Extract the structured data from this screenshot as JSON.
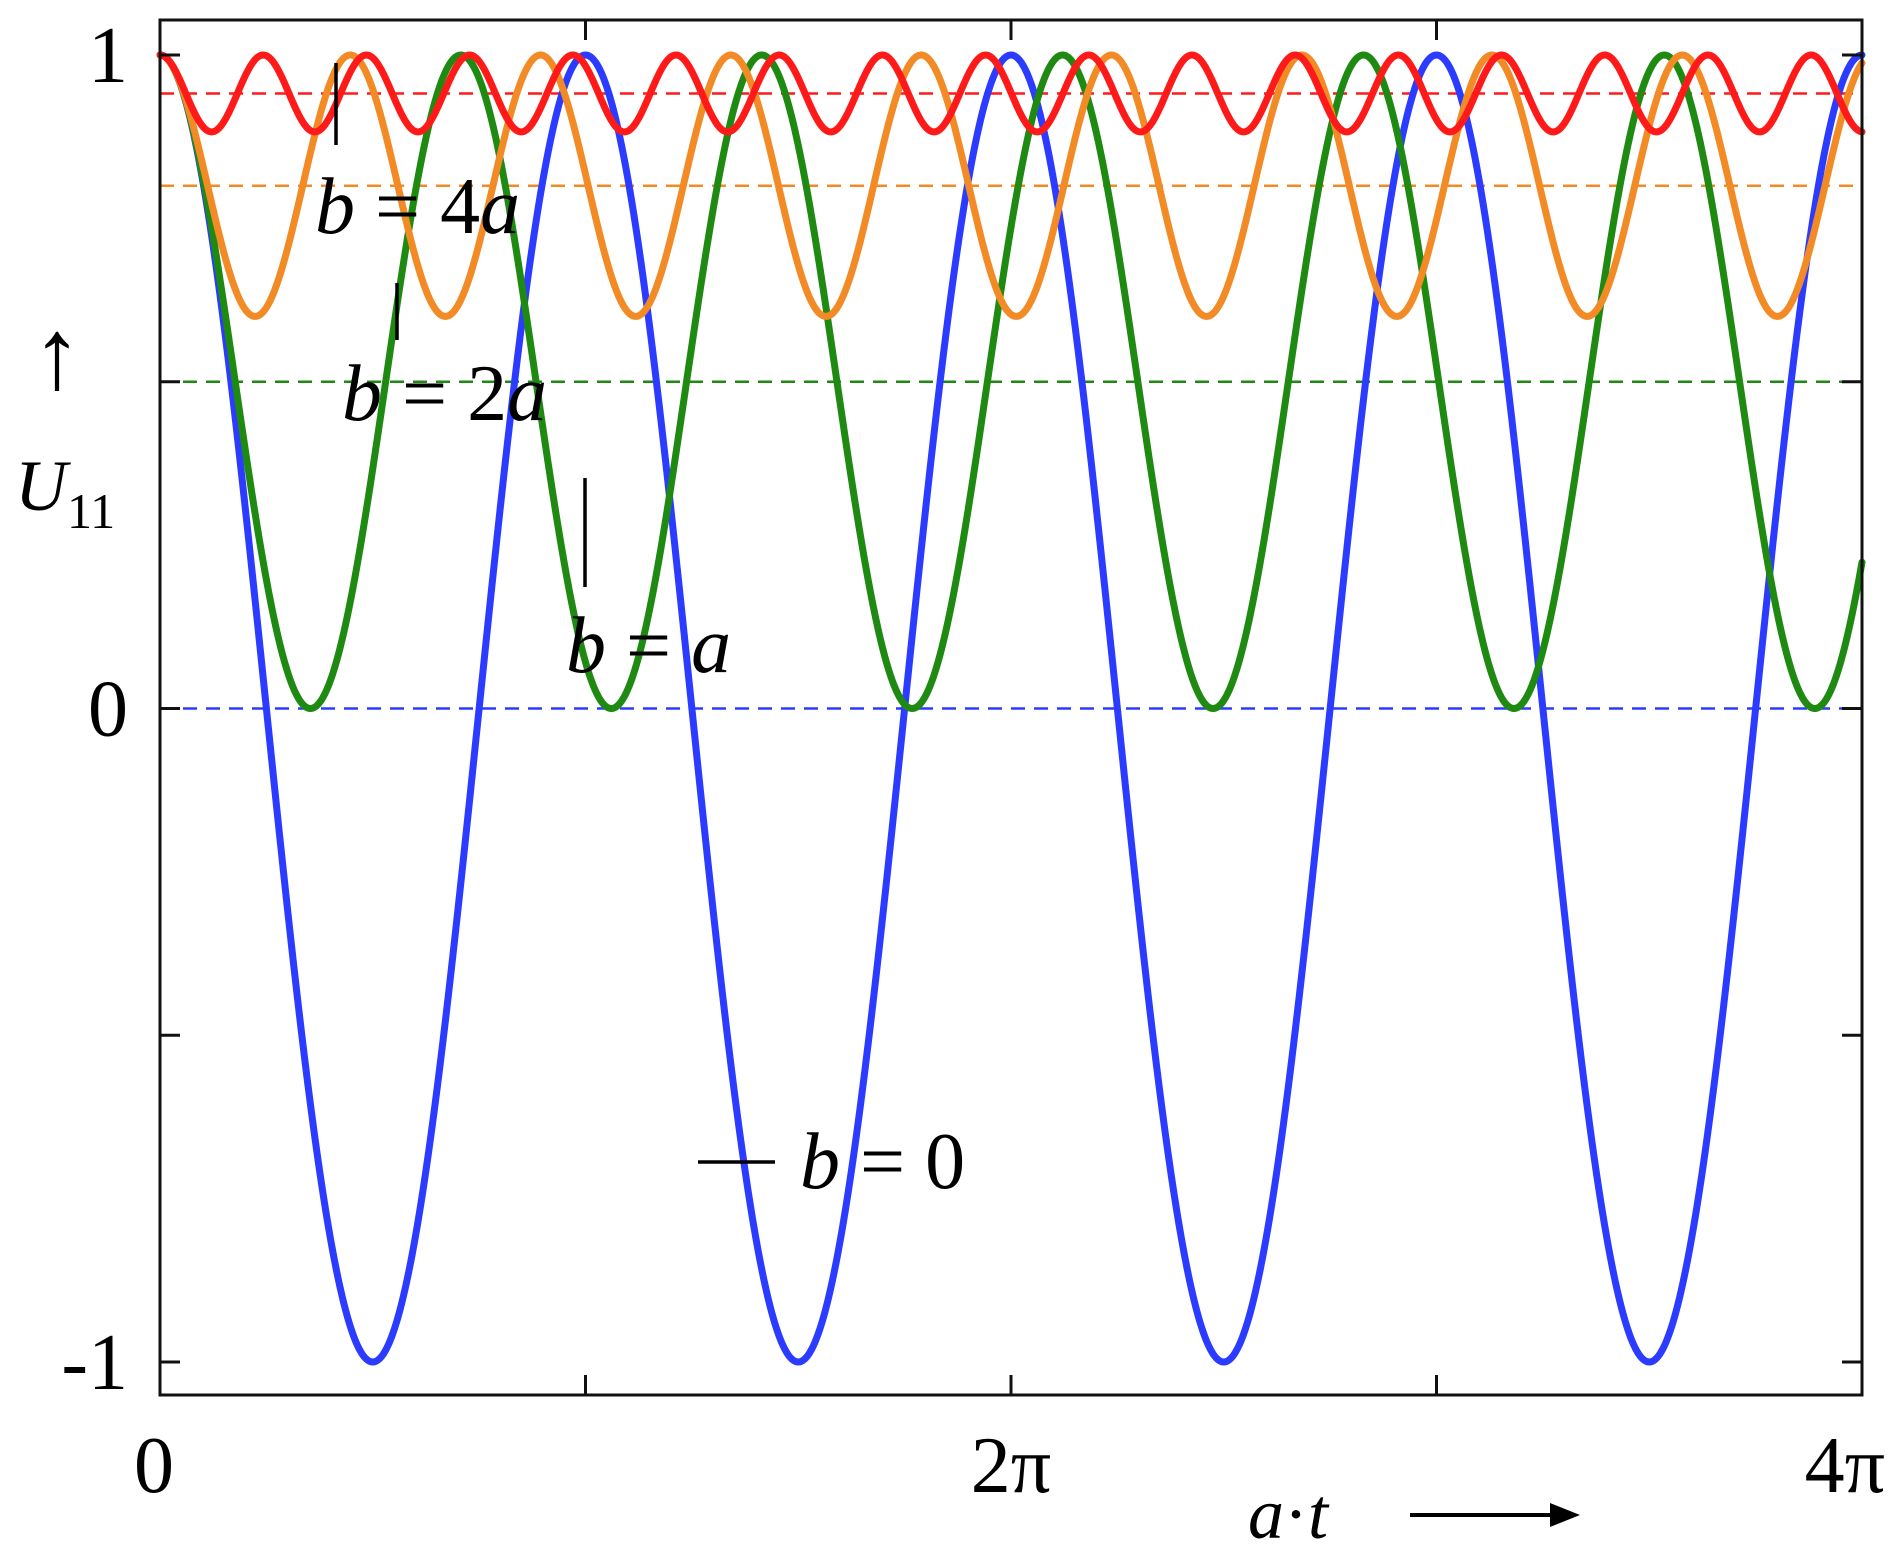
{
  "chart_data": {
    "type": "line",
    "title": "",
    "xlim": [
      0,
      12.566370614359172
    ],
    "ylim": [
      -1.05,
      1.0
    ],
    "xlabel": {
      "symbol": "a",
      "dot": "·",
      "var": "t",
      "arrow": "⟶"
    },
    "ylabel": {
      "arrow": "↑",
      "symbol": "U",
      "subscript": "11"
    },
    "x_ticks": [
      {
        "value": 0,
        "label": "0"
      },
      {
        "value": 6.283185307179586,
        "label": "2π"
      },
      {
        "value": 12.566370614359172,
        "label": "4π"
      }
    ],
    "x_minor_ticks": [
      3.141592653589793,
      9.42477796076938
    ],
    "y_ticks": [
      {
        "value": 1,
        "label": "1"
      },
      {
        "value": 0,
        "label": "0"
      },
      {
        "value": -1,
        "label": "-1"
      }
    ],
    "y_minor_ticks": [
      0.5,
      -0.5
    ],
    "grid": false,
    "series": [
      {
        "label": {
          "var": "b",
          "eq": " = ",
          "val": "0"
        },
        "b_over_a": 0,
        "color": "#2b3bff",
        "baseline": 0.0
      },
      {
        "label": {
          "var": "b",
          "eq": " = ",
          "val": "a",
          "val_italic": true
        },
        "b_over_a": 1,
        "color": "#1f8a12",
        "baseline": 0.5
      },
      {
        "label": {
          "var": "b",
          "eq": " = ",
          "val": "2a",
          "val_italic": true
        },
        "b_over_a": 2,
        "color": "#f28a26",
        "baseline": 0.8
      },
      {
        "label": {
          "var": "b",
          "eq": " = ",
          "val": "4a",
          "val_italic": true
        },
        "b_over_a": 4,
        "color": "#ff1a1a",
        "baseline": 0.9411764705882353
      }
    ]
  }
}
